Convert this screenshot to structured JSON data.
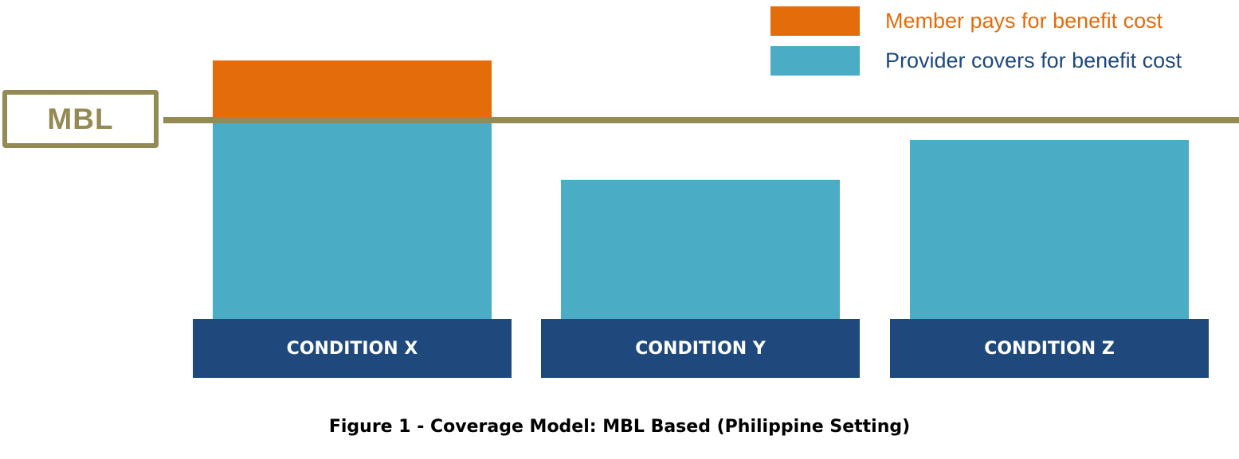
{
  "colors": {
    "member": "#e46c0a",
    "provider": "#4bacc6",
    "condition_bg": "#1f497d",
    "mbl": "#948a54",
    "legend_provider_text": "#1f497d"
  },
  "legend": {
    "member": "Member pays for benefit cost",
    "provider": "Provider covers for benefit cost"
  },
  "mbl": {
    "label": "MBL"
  },
  "conditions": [
    {
      "label": "CONDITION X",
      "exceeds_mbl": true
    },
    {
      "label": "CONDITION Y",
      "exceeds_mbl": false
    },
    {
      "label": "CONDITION Z",
      "exceeds_mbl": false
    }
  ],
  "caption": "Figure 1 - Coverage Model: MBL Based (Philippine Setting)"
}
